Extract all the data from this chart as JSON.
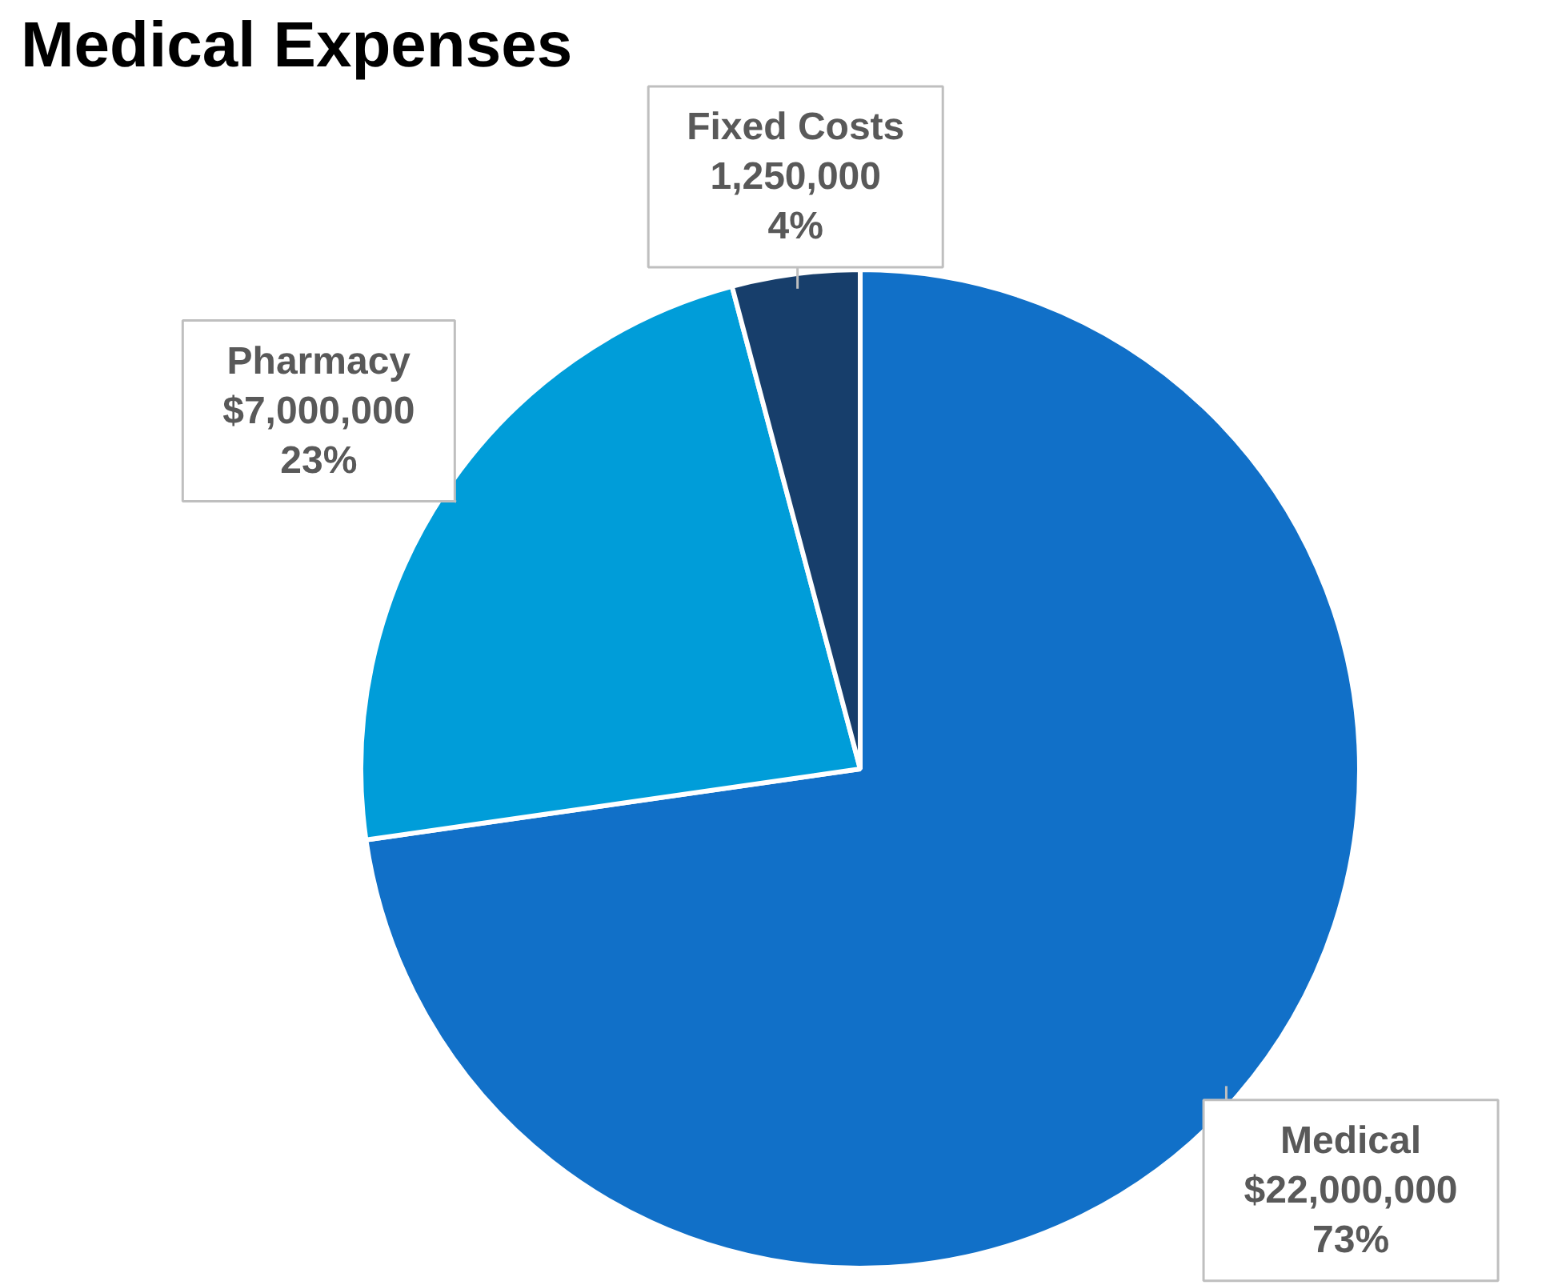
{
  "chart_data": {
    "type": "pie",
    "title": "Medical Expenses",
    "categories": [
      "Medical",
      "Pharmacy",
      "Fixed Costs"
    ],
    "values": [
      22000000,
      7000000,
      1250000
    ],
    "colors": [
      "#1170c8",
      "#009dd9",
      "#173e6b"
    ],
    "value_labels": [
      "$22,000,000\n73%",
      "$7,000,000\n23%",
      "1,250,000\n4%"
    ]
  }
}
